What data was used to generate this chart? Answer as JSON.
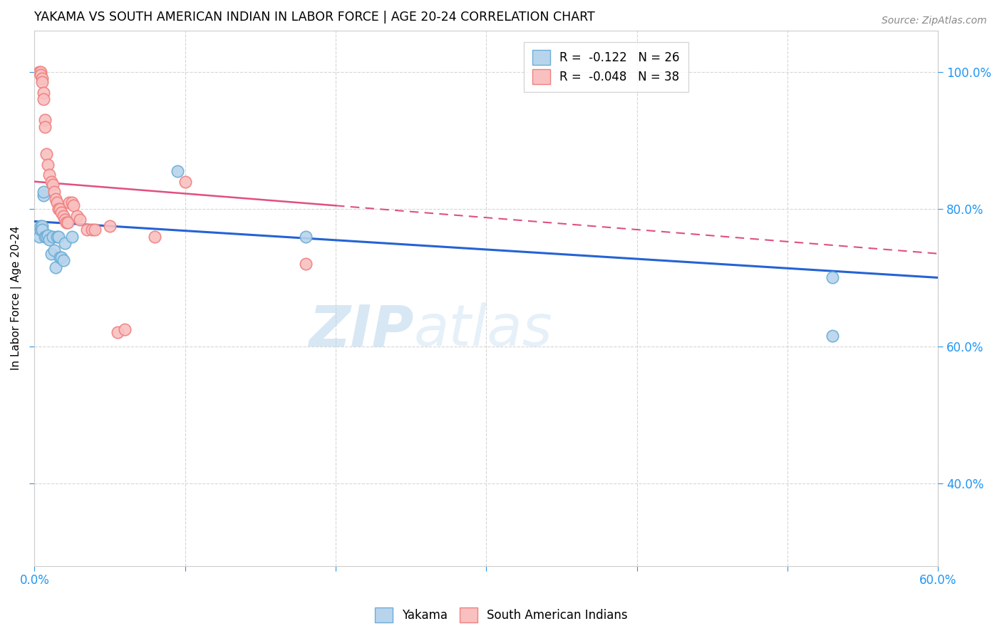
{
  "title": "YAKAMA VS SOUTH AMERICAN INDIAN IN LABOR FORCE | AGE 20-24 CORRELATION CHART",
  "source": "Source: ZipAtlas.com",
  "ylabel": "In Labor Force | Age 20-24",
  "xlim": [
    0.0,
    0.6
  ],
  "ylim": [
    0.28,
    1.06
  ],
  "xticks": [
    0.0,
    0.1,
    0.2,
    0.3,
    0.4,
    0.5,
    0.6
  ],
  "yticks": [
    0.4,
    0.6,
    0.8,
    1.0
  ],
  "blue_scatter_x": [
    0.003,
    0.004,
    0.004,
    0.005,
    0.005,
    0.006,
    0.006,
    0.007,
    0.008,
    0.009,
    0.01,
    0.011,
    0.012,
    0.013,
    0.014,
    0.015,
    0.016,
    0.017,
    0.018,
    0.019,
    0.02,
    0.025,
    0.095,
    0.18,
    0.53,
    0.53
  ],
  "blue_scatter_y": [
    0.76,
    0.77,
    0.775,
    0.775,
    0.77,
    0.82,
    0.825,
    0.76,
    0.76,
    0.762,
    0.755,
    0.735,
    0.76,
    0.74,
    0.715,
    0.76,
    0.76,
    0.73,
    0.73,
    0.725,
    0.75,
    0.76,
    0.855,
    0.76,
    0.7,
    0.615
  ],
  "pink_scatter_x": [
    0.003,
    0.004,
    0.004,
    0.005,
    0.005,
    0.006,
    0.006,
    0.007,
    0.007,
    0.008,
    0.009,
    0.01,
    0.011,
    0.012,
    0.013,
    0.014,
    0.015,
    0.016,
    0.017,
    0.018,
    0.019,
    0.02,
    0.021,
    0.022,
    0.023,
    0.025,
    0.026,
    0.028,
    0.03,
    0.035,
    0.038,
    0.04,
    0.05,
    0.055,
    0.06,
    0.08,
    0.1,
    0.18
  ],
  "pink_scatter_y": [
    1.0,
    1.0,
    0.995,
    0.99,
    0.985,
    0.97,
    0.96,
    0.93,
    0.92,
    0.88,
    0.865,
    0.85,
    0.84,
    0.835,
    0.825,
    0.815,
    0.81,
    0.8,
    0.8,
    0.795,
    0.79,
    0.785,
    0.78,
    0.78,
    0.81,
    0.81,
    0.805,
    0.79,
    0.785,
    0.77,
    0.77,
    0.77,
    0.775,
    0.62,
    0.625,
    0.76,
    0.84,
    0.72
  ],
  "blue_line_x0": 0.0,
  "blue_line_x1": 0.6,
  "blue_line_y0": 0.782,
  "blue_line_y1": 0.7,
  "pink_line_x0": 0.0,
  "pink_line_x1": 0.6,
  "pink_line_y0": 0.84,
  "pink_line_y1": 0.735,
  "watermark_text": "ZIPatlas",
  "legend_label_blue": "Yakama",
  "legend_label_pink": "South American Indians",
  "legend_r_blue": "R =  -0.122   N = 26",
  "legend_r_pink": "R =  -0.048   N = 38"
}
